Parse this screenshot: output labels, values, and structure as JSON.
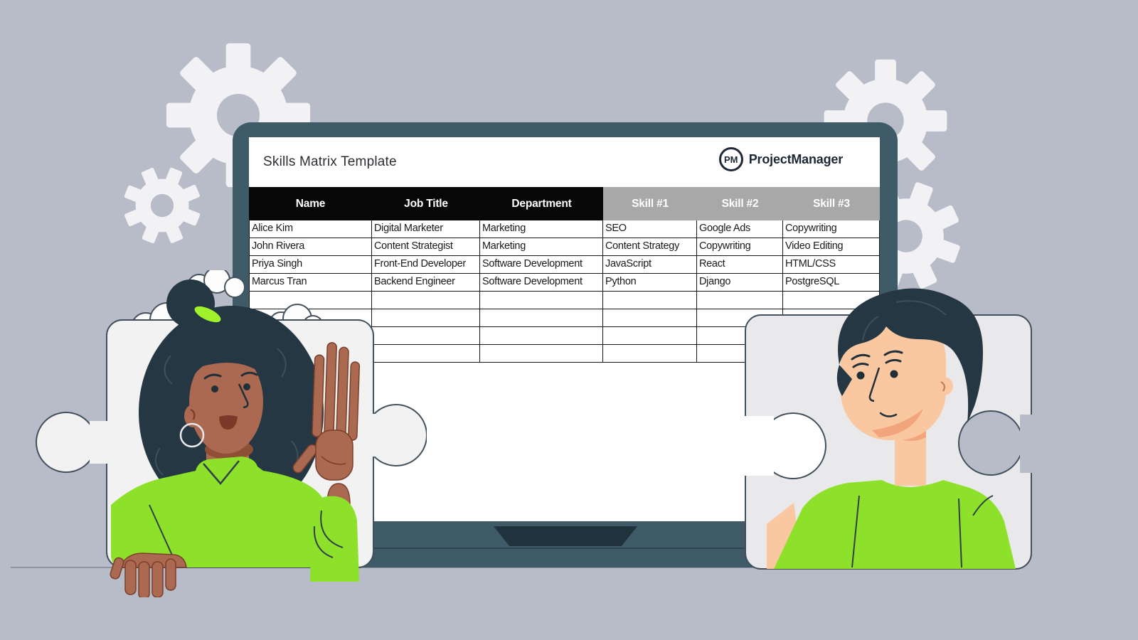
{
  "scene": {
    "title": "Skills Matrix Template",
    "brand": {
      "monogram": "PM",
      "name": "ProjectManager"
    },
    "table": {
      "columns": [
        {
          "label": "Name",
          "group": "info"
        },
        {
          "label": "Job Title",
          "group": "info"
        },
        {
          "label": "Department",
          "group": "info"
        },
        {
          "label": "Skill #1",
          "group": "skills"
        },
        {
          "label": "Skill #2",
          "group": "skills"
        },
        {
          "label": "Skill #3",
          "group": "skills"
        }
      ],
      "rows": [
        [
          "Alice Kim",
          "Digital Marketer",
          "Marketing",
          "SEO",
          "Google Ads",
          "Copywriting"
        ],
        [
          "John Rivera",
          "Content Strategist",
          "Marketing",
          "Content Strategy",
          "Copywriting",
          "Video Editing"
        ],
        [
          "Priya Singh",
          "Front-End Developer",
          "Software Development",
          "JavaScript",
          "React",
          "HTML/CSS"
        ],
        [
          "Marcus Tran",
          "Backend Engineer",
          "Software Development",
          "Python",
          "Django",
          "PostgreSQL"
        ]
      ],
      "empty_row_count": 4
    },
    "colors": {
      "background": "#b8bcc8",
      "gear": "#f2f2f4",
      "laptop_frame": "#3e5b67",
      "laptop_notch": "#20323b",
      "header_dark": "#070707",
      "header_gray": "#a8a8a8",
      "brand_navy": "#1c2836",
      "shirt_green": "#8ee12b",
      "hair_dark": "#243742",
      "skin_left_person": "#ab6951",
      "skin_right_person": "#f9c7a0",
      "puzzle_left": "#f2f2f3",
      "puzzle_right": "#e9e9eb"
    }
  }
}
